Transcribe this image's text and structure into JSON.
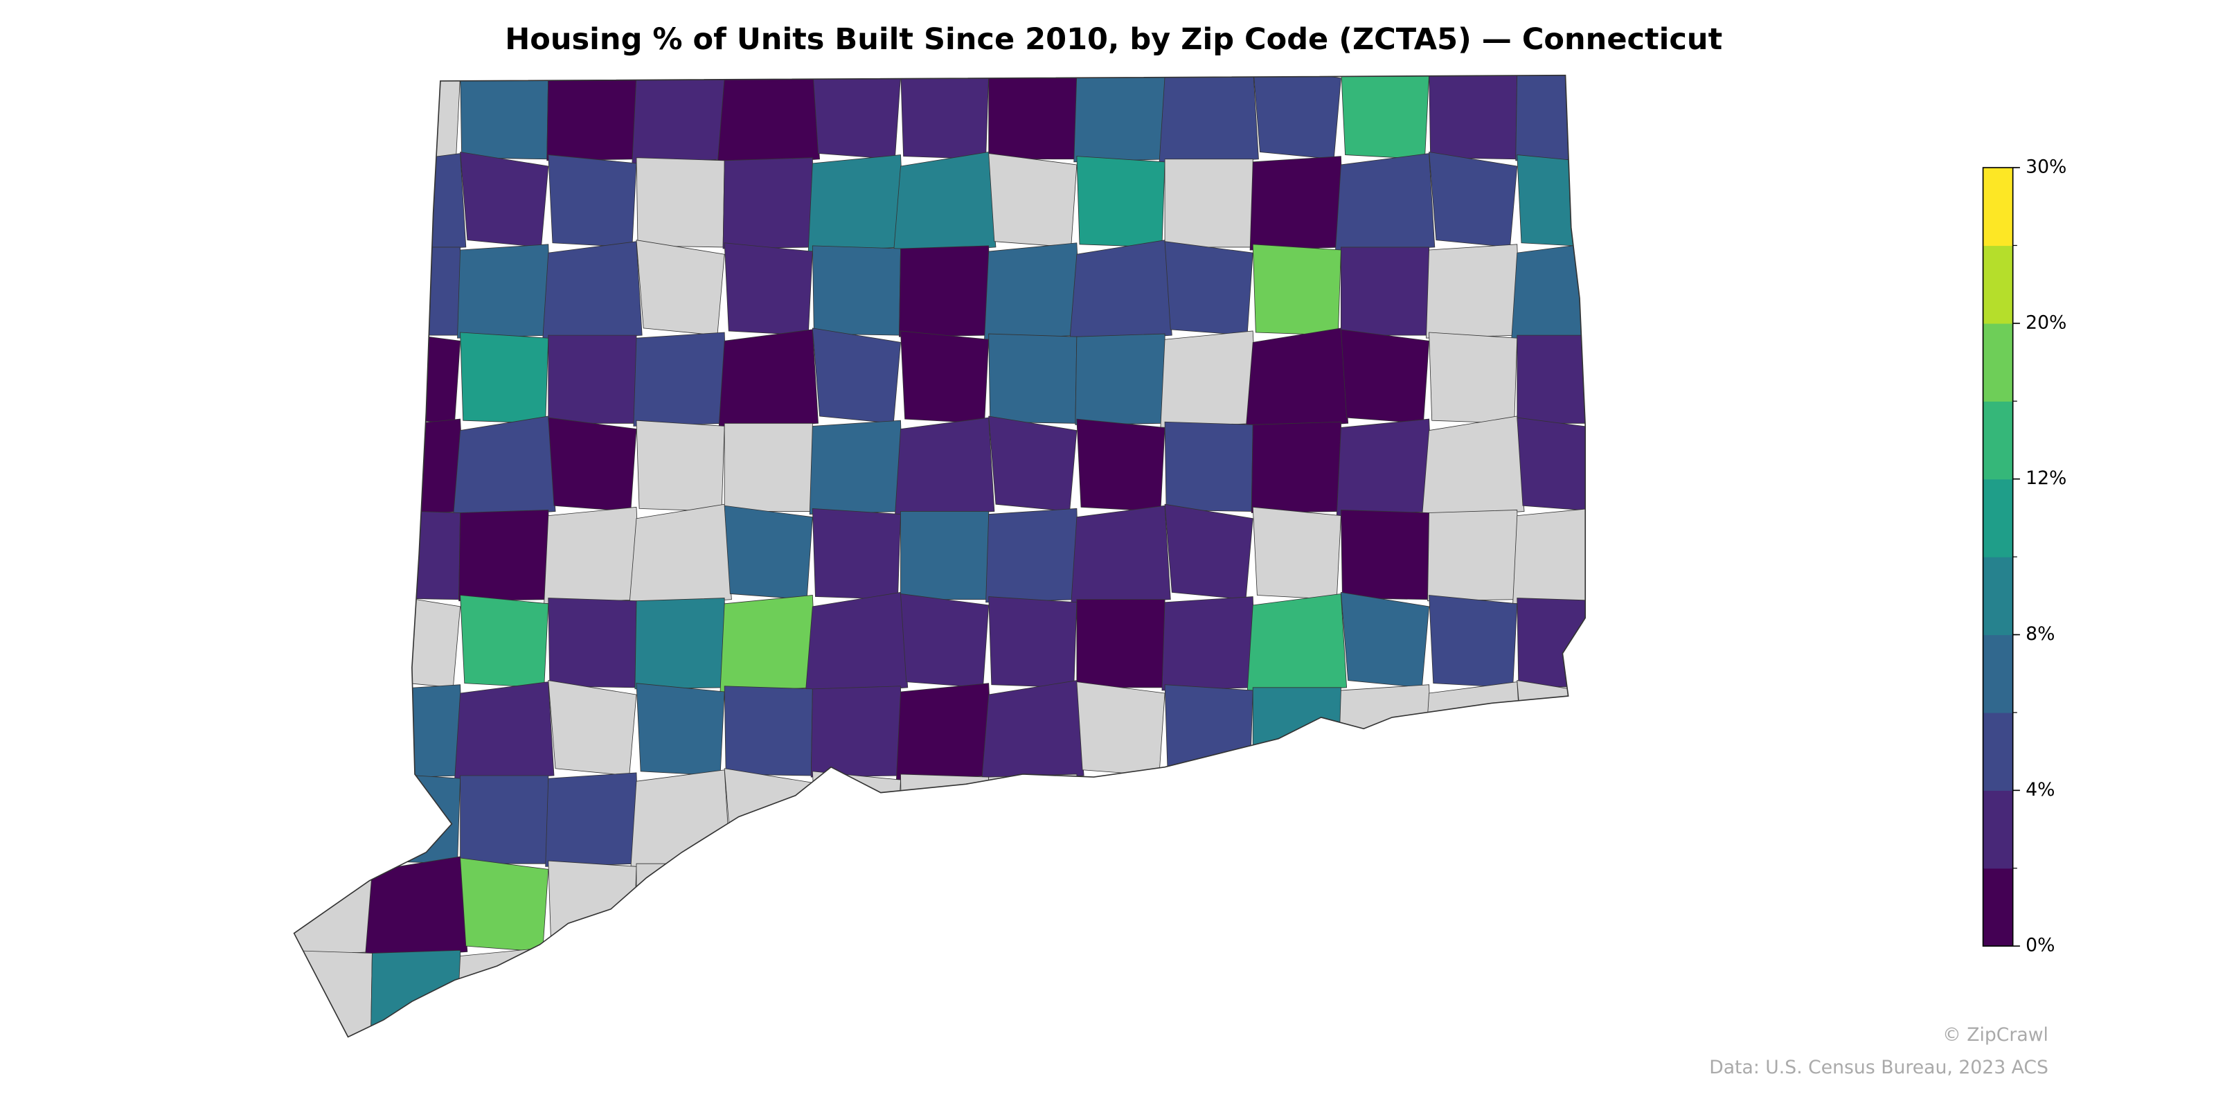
{
  "chart_data": {
    "type": "choropleth",
    "title": "Housing % of Units Built Since 2010, by Zip Code (ZCTA5) — Connecticut",
    "values": [
      [
        null,
        null,
        7,
        1,
        3,
        1,
        3,
        3,
        1,
        7,
        5,
        5,
        13,
        3,
        5
      ],
      [
        null,
        5,
        3,
        5,
        null,
        3,
        9,
        9,
        null,
        11,
        null,
        1,
        5,
        5,
        9
      ],
      [
        null,
        5,
        7,
        5,
        null,
        3,
        7,
        1,
        7,
        5,
        5,
        18,
        3,
        null,
        7
      ],
      [
        null,
        1,
        11,
        3,
        5,
        1,
        5,
        1,
        7,
        7,
        null,
        1,
        1,
        null,
        3
      ],
      [
        null,
        1,
        5,
        1,
        null,
        null,
        7,
        3,
        3,
        1,
        5,
        1,
        3,
        null,
        3
      ],
      [
        null,
        3,
        1,
        null,
        null,
        7,
        3,
        7,
        5,
        3,
        3,
        null,
        1,
        null,
        null
      ],
      [
        null,
        null,
        13,
        3,
        9,
        18,
        3,
        3,
        3,
        1,
        3,
        13,
        7,
        5,
        3
      ],
      [
        null,
        7,
        3,
        null,
        7,
        5,
        3,
        1,
        3,
        null,
        5,
        9,
        null,
        null,
        null
      ],
      [
        null,
        7,
        5,
        5,
        null,
        null,
        null,
        null,
        null,
        null,
        null,
        null,
        null,
        null,
        null
      ],
      [
        null,
        1,
        18,
        null,
        null,
        null,
        null,
        null,
        null,
        null,
        null,
        null,
        null,
        null,
        null
      ],
      [
        null,
        9,
        null,
        null,
        null,
        null,
        null,
        null,
        null,
        null,
        null,
        null,
        null,
        null,
        null
      ]
    ],
    "missing_color": "#d3d3d3",
    "colorbar": {
      "boundaries": [
        0,
        2,
        4,
        6,
        8,
        10,
        12,
        15,
        20,
        25,
        30
      ],
      "colors": [
        "#440154",
        "#482878",
        "#3e4989",
        "#31688e",
        "#26828e",
        "#1f9e89",
        "#35b779",
        "#6ece58",
        "#b5de2b",
        "#fde725"
      ],
      "ticks": [
        {
          "value": 0,
          "label": "0%"
        },
        {
          "value": 4,
          "label": "4%"
        },
        {
          "value": 8,
          "label": "8%"
        },
        {
          "value": 12,
          "label": "12%"
        },
        {
          "value": 20,
          "label": "20%"
        },
        {
          "value": 30,
          "label": "30%"
        }
      ]
    },
    "credit": "© ZipCrawl",
    "source": "Data: U.S. Census Bureau, 2023 ACS"
  }
}
